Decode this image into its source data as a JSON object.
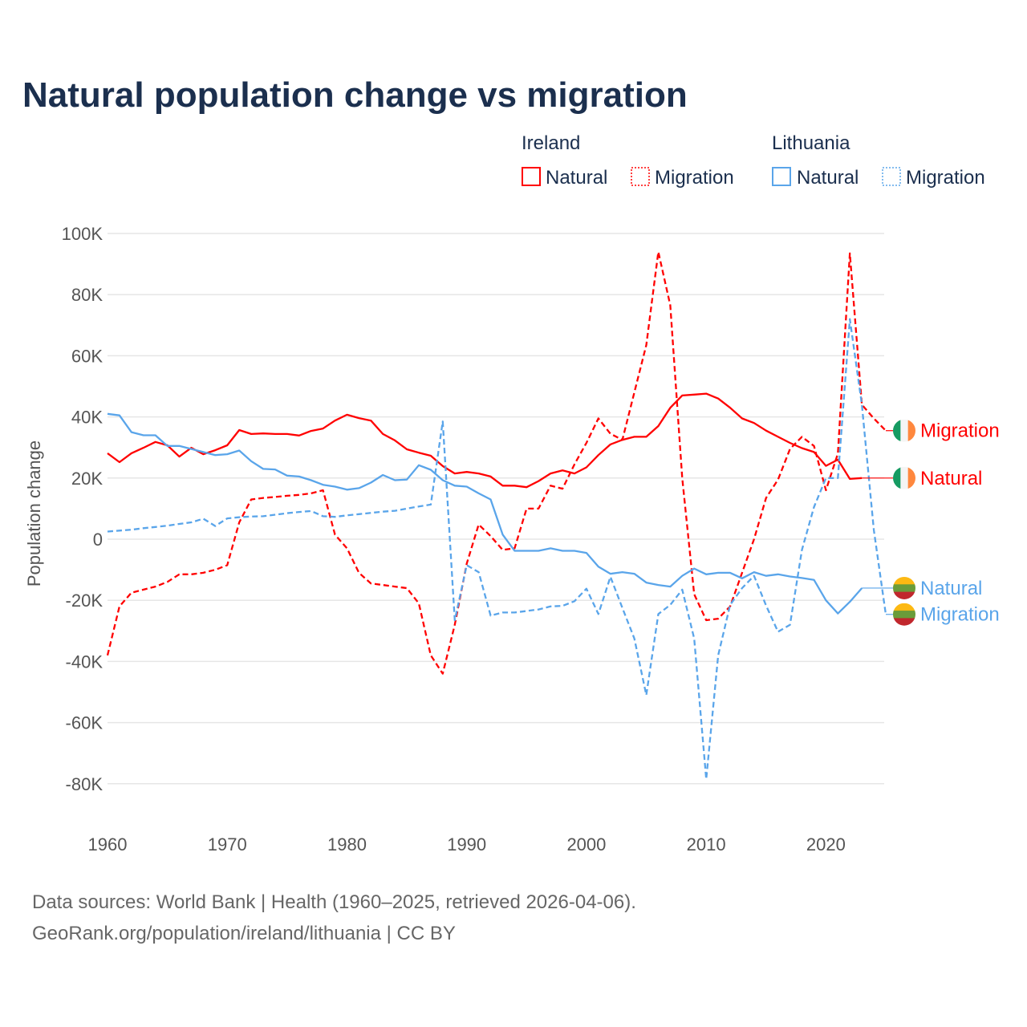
{
  "chart_data": {
    "type": "line",
    "title": "Natural population change vs migration",
    "xlabel": "",
    "ylabel": "Population change",
    "xlim": [
      1960,
      2025
    ],
    "ylim": [
      -90000,
      100000
    ],
    "grid": true,
    "legend_placement": "top-right",
    "x_ticks": [
      1960,
      1970,
      1980,
      1990,
      2000,
      2010,
      2020
    ],
    "x_tick_labels": [
      "1960",
      "1970",
      "1980",
      "1990",
      "2000",
      "2010",
      "2020"
    ],
    "y_ticks": [
      100000,
      80000,
      60000,
      40000,
      20000,
      0,
      -20000,
      -40000,
      -60000,
      -80000
    ],
    "y_tick_labels": [
      "100K",
      "80K",
      "60K",
      "40K",
      "20K",
      "0",
      "-20K",
      "-40K",
      "-60K",
      "-80K"
    ],
    "legend": {
      "groups": [
        {
          "country": "Ireland",
          "items": [
            "Natural",
            "Migration"
          ]
        },
        {
          "country": "Lithuania",
          "items": [
            "Natural",
            "Migration"
          ]
        }
      ]
    },
    "series": [
      {
        "id": "ireland-natural",
        "country": "Ireland",
        "name": "Natural",
        "color": "#ff0000",
        "dashed": false,
        "start_year": 1960,
        "values": [
          28100,
          25200,
          28100,
          29900,
          31800,
          30700,
          27000,
          29900,
          27800,
          29100,
          30700,
          35700,
          34400,
          34600,
          34400,
          34400,
          33900,
          35400,
          36200,
          38800,
          40700,
          39600,
          38800,
          34400,
          32300,
          29400,
          28300,
          27300,
          23900,
          21500,
          22000,
          21500,
          20500,
          17500,
          17500,
          17000,
          19000,
          21500,
          22500,
          21500,
          23500,
          27500,
          31000,
          32500,
          33500,
          33500,
          37000,
          43000,
          47000,
          47300,
          47600,
          46000,
          43000,
          39500,
          38000,
          35500,
          33500,
          31500,
          29800,
          28500,
          24000,
          26000,
          19700,
          20000
        ]
      },
      {
        "id": "ireland-migration",
        "country": "Ireland",
        "name": "Migration",
        "color": "#ff0000",
        "dashed": true,
        "start_year": 1960,
        "values": [
          -38000,
          -22000,
          -17500,
          -16500,
          -15500,
          -14000,
          -11500,
          -11500,
          -11000,
          -10000,
          -8500,
          5500,
          13000,
          13500,
          13800,
          14200,
          14500,
          15000,
          16000,
          1500,
          -3000,
          -11000,
          -14500,
          -15000,
          -15500,
          -16000,
          -21000,
          -38000,
          -44000,
          -28000,
          -8000,
          4800,
          1000,
          -3500,
          -3000,
          10000,
          10000,
          17500,
          16500,
          24500,
          31500,
          39500,
          34500,
          32500,
          48000,
          63500,
          94000,
          76500,
          20000,
          -18000,
          -26500,
          -26000,
          -22000,
          -11000,
          0,
          13500,
          19500,
          29500,
          33500,
          30500,
          16000,
          28000,
          93500,
          44000,
          39500,
          35500
        ]
      },
      {
        "id": "lithuania-natural",
        "country": "Lithuania",
        "name": "Natural",
        "color": "#5aa5ea",
        "dashed": false,
        "start_year": 1960,
        "values": [
          41000,
          40500,
          35000,
          34000,
          34000,
          30500,
          30500,
          29500,
          28500,
          27500,
          27800,
          29000,
          25500,
          23000,
          22800,
          20800,
          20500,
          19300,
          17800,
          17200,
          16200,
          16700,
          18500,
          21000,
          19300,
          19500,
          24200,
          22700,
          19300,
          17500,
          17200,
          15000,
          13000,
          1500,
          -3800,
          -3800,
          -3800,
          -3000,
          -3800,
          -3800,
          -4500,
          -9000,
          -11300,
          -10800,
          -11300,
          -14200,
          -15000,
          -15500,
          -12000,
          -9600,
          -11500,
          -11000,
          -11000,
          -12800,
          -10800,
          -12000,
          -11500,
          -12200,
          -12700,
          -13300,
          -20000,
          -24300,
          -20500,
          -16000
        ]
      },
      {
        "id": "lithuania-migration",
        "country": "Lithuania",
        "name": "Migration",
        "color": "#5aa5ea",
        "dashed": true,
        "start_year": 1960,
        "values": [
          2500,
          2800,
          3100,
          3600,
          4000,
          4400,
          5000,
          5500,
          6700,
          4300,
          6800,
          7200,
          7400,
          7500,
          8000,
          8500,
          8900,
          9200,
          7500,
          7300,
          7800,
          8200,
          8600,
          9000,
          9300,
          10000,
          10700,
          11300,
          38500,
          -26500,
          -8500,
          -10800,
          -25000,
          -24000,
          -24000,
          -23500,
          -23000,
          -22000,
          -21800,
          -20300,
          -16200,
          -24500,
          -12300,
          -22500,
          -32500,
          -51000,
          -24500,
          -21500,
          -16500,
          -32500,
          -78500,
          -38000,
          -21500,
          -16000,
          -12000,
          -21700,
          -30300,
          -28000,
          -3500,
          10500,
          20000,
          20000,
          72000,
          44000,
          3000,
          -24600
        ]
      }
    ],
    "end_labels": [
      {
        "series": "ireland-migration",
        "text": "Migration",
        "flag": "ireland-flag"
      },
      {
        "series": "ireland-natural",
        "text": "Natural",
        "flag": "ireland-flag"
      },
      {
        "series": "lithuania-natural",
        "text": "Natural",
        "flag": "lithuania-flag"
      },
      {
        "series": "lithuania-migration",
        "text": "Migration",
        "flag": "lithuania-flag"
      }
    ]
  },
  "footer": {
    "line1": "Data sources: World Bank | Health (1960–2025, retrieved 2026-04-06).",
    "line2": "GeoRank.org/population/ireland/lithuania | CC BY"
  },
  "colors": {
    "ireland": "#ff0000",
    "lithuania": "#5aa5ea",
    "title": "#1b2f4e"
  }
}
